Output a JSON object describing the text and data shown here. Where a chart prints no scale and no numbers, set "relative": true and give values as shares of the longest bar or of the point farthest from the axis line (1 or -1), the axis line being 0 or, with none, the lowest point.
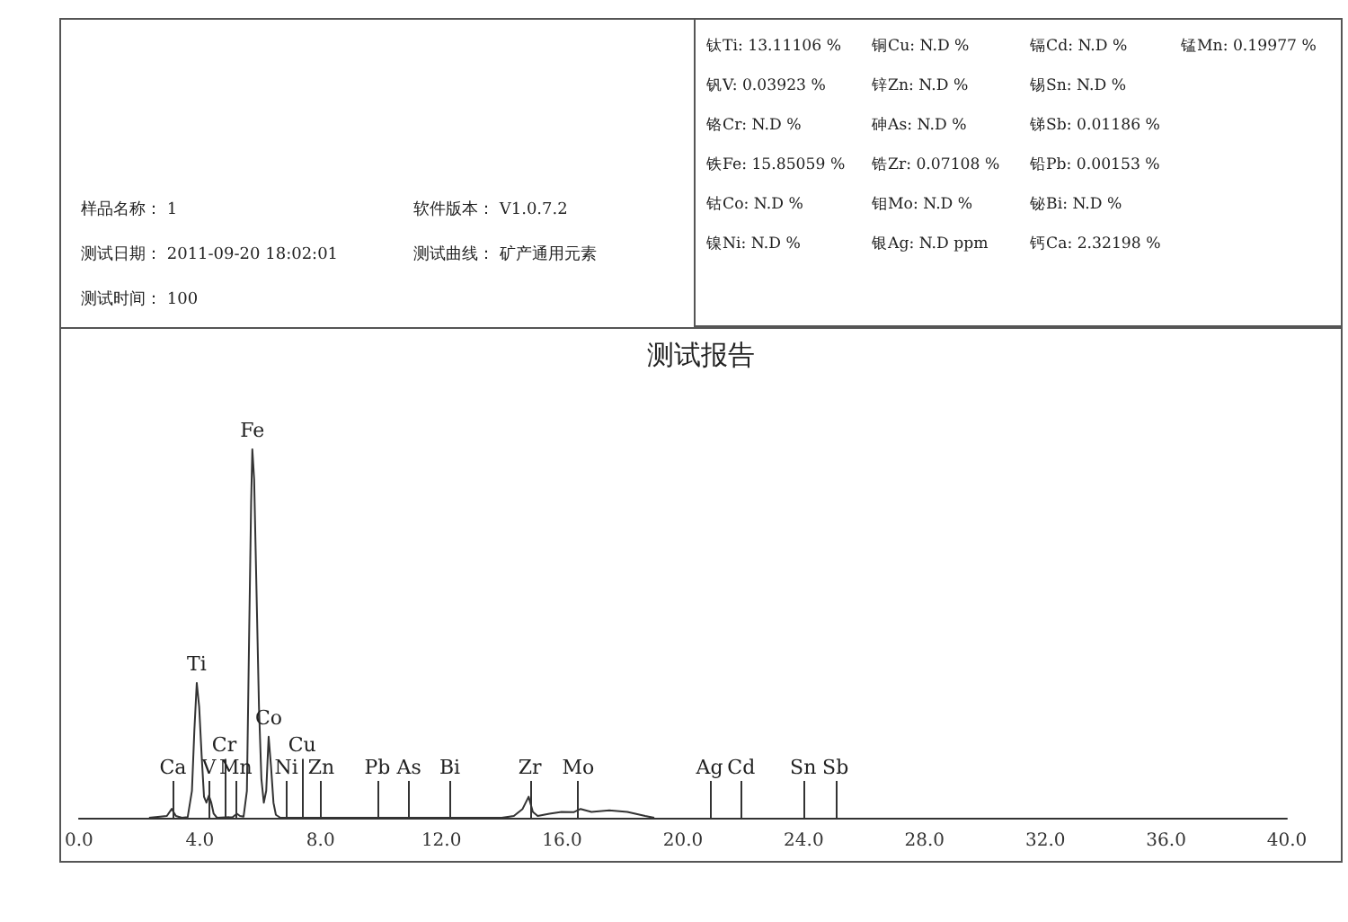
{
  "chart_data": [
    {
      "type": "other",
      "annotations": [
        "样品名称： 1",
        "软件版本： V1.0.7.2",
        "测试日期： 2011-09-20 18:02:01",
        "测试曲线： 矿产通用元素",
        "测试时间： 100"
      ]
    },
    {
      "type": "other",
      "annotations": [
        "钛Ti: 13.11106 %",
        "钒V: 0.03923 %",
        "铬Cr: N.D %",
        "铁Fe: 15.85059 %",
        "钴Co: N.D %",
        "镍Ni: N.D %",
        "铜Cu: N.D %",
        "锌Zn: N.D %",
        "砷As: N.D %",
        "锆Zr: 0.07108 %",
        "钼Mo: N.D %",
        "银Ag: N.D ppm",
        "镉Cd: N.D %",
        "锡Sn: N.D %",
        "锑Sb: 0.01186 %",
        "铅Pb: 0.00153 %",
        "铋Bi: N.D %",
        "钙Ca: 2.32198 %",
        "锰Mn: 0.19977 %"
      ]
    },
    {
      "type": "line",
      "title": "测试报告",
      "relative": true,
      "color": "#333333",
      "marker": "none",
      "grid": false,
      "tick_labels": "x",
      "x": [
        2.32,
        2.91,
        3.07,
        3.21,
        3.41,
        3.6,
        3.74,
        3.82,
        3.9,
        3.98,
        4.06,
        4.14,
        4.22,
        4.3,
        4.38,
        4.46,
        4.57,
        5.09,
        5.23,
        5.33,
        5.45,
        5.56,
        5.64,
        5.7,
        5.74,
        5.8,
        5.88,
        5.96,
        6.04,
        6.12,
        6.2,
        6.28,
        6.36,
        6.44,
        6.52,
        6.67,
        14.0,
        14.4,
        14.69,
        14.89,
        15.03,
        15.19,
        15.58,
        15.98,
        16.38,
        16.61,
        16.97,
        17.56,
        18.16,
        18.75,
        19.05
      ],
      "values": [
        0,
        0.005,
        0.024,
        0.005,
        0,
        0.002,
        0.073,
        0.236,
        0.366,
        0.301,
        0.171,
        0.057,
        0.041,
        0.06,
        0.041,
        0.011,
        0,
        0.002,
        0.011,
        0.005,
        0.003,
        0.073,
        0.528,
        0.854,
        1,
        0.919,
        0.61,
        0.301,
        0.106,
        0.041,
        0.073,
        0.22,
        0.138,
        0.041,
        0.008,
        0,
        0,
        0.005,
        0.024,
        0.057,
        0.016,
        0.005,
        0.011,
        0.016,
        0.015,
        0.024,
        0.016,
        0.02,
        0.016,
        0.005,
        0
      ],
      "xlim": [
        0,
        40
      ],
      "xticks": [
        {
          "value": 0,
          "label": "0.0"
        },
        {
          "value": 4,
          "label": "4.0"
        },
        {
          "value": 8,
          "label": "8.0"
        },
        {
          "value": 12,
          "label": "12.0"
        },
        {
          "value": 16,
          "label": "16.0"
        },
        {
          "value": 20,
          "label": "20.0"
        },
        {
          "value": 24,
          "label": "24.0"
        },
        {
          "value": 28,
          "label": "28.0"
        },
        {
          "value": 32,
          "label": "32.0"
        },
        {
          "value": 36,
          "label": "36.0"
        },
        {
          "value": 40,
          "label": "40.0"
        }
      ],
      "annotations": [
        {
          "text": "Ti",
          "x": 3.9,
          "y": 0.366
        },
        {
          "text": "Fe",
          "x": 5.74,
          "y": 1
        },
        {
          "text": "Co",
          "x": 6.28,
          "y": 0.22
        }
      ],
      "ref_lines": [
        {
          "axis": "x",
          "value": 3.11,
          "label": "Ca"
        },
        {
          "axis": "x",
          "value": 4.3,
          "label": "V"
        },
        {
          "axis": "x",
          "value": 4.81,
          "label": "Cr"
        },
        {
          "axis": "x",
          "value": 5.19,
          "label": "Mn"
        },
        {
          "axis": "x",
          "value": 6.87,
          "label": "Ni"
        },
        {
          "axis": "x",
          "value": 7.39,
          "label": "Cu"
        },
        {
          "axis": "x",
          "value": 8.02,
          "label": "Zn"
        },
        {
          "axis": "x",
          "value": 9.88,
          "label": "Pb"
        },
        {
          "axis": "x",
          "value": 10.93,
          "label": "As"
        },
        {
          "axis": "x",
          "value": 12.28,
          "label": "Bi"
        },
        {
          "axis": "x",
          "value": 14.93,
          "label": "Zr"
        },
        {
          "axis": "x",
          "value": 16.53,
          "label": "Mo"
        },
        {
          "axis": "x",
          "value": 20.88,
          "label": "Ag"
        },
        {
          "axis": "x",
          "value": 21.93,
          "label": "Cd"
        },
        {
          "axis": "x",
          "value": 23.98,
          "label": "Sn"
        },
        {
          "axis": "x",
          "value": 25.05,
          "label": "Sb"
        }
      ]
    }
  ]
}
